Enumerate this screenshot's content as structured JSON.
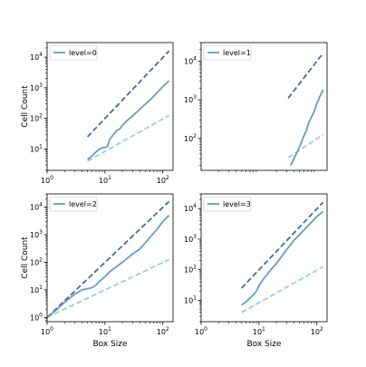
{
  "chart_data": [
    {
      "type": "line",
      "xscale": "log",
      "yscale": "log",
      "xlim": [
        1,
        150
      ],
      "ylim": [
        2,
        30000
      ],
      "xlabel": "",
      "ylabel": "Cell Count",
      "x_ticks": [
        {
          "value": 1,
          "base": "10",
          "exp": "0"
        },
        {
          "value": 10,
          "base": "10",
          "exp": "1"
        },
        {
          "value": 100,
          "base": "10",
          "exp": "2"
        }
      ],
      "y_ticks": [
        {
          "value": 10,
          "base": "10",
          "exp": "1"
        },
        {
          "value": 100,
          "base": "10",
          "exp": "2"
        },
        {
          "value": 1000,
          "base": "10",
          "exp": "3"
        },
        {
          "value": 10000,
          "base": "10",
          "exp": "4"
        }
      ],
      "legend": {
        "position": "upper-left",
        "entry": "level=0"
      },
      "series": [
        {
          "role": "data",
          "color": "#6a9bc6",
          "style": "solid",
          "x": [
            5,
            6,
            7,
            8,
            9,
            10,
            11,
            12,
            14,
            16,
            18,
            20,
            25,
            30,
            40,
            60,
            80,
            100,
            128
          ],
          "y": [
            4.5,
            6,
            8,
            10,
            11,
            11,
            12,
            20,
            30,
            40,
            45,
            60,
            90,
            120,
            200,
            400,
            700,
            1100,
            1700
          ]
        },
        {
          "role": "reference",
          "color": "#4d6a8e",
          "style": "dashed",
          "x": [
            5,
            128
          ],
          "y": [
            25,
            16000
          ]
        },
        {
          "role": "reference",
          "color": "#9fcbe3",
          "style": "dashed",
          "x": [
            5,
            128
          ],
          "y": [
            4,
            125
          ]
        }
      ]
    },
    {
      "type": "line",
      "xscale": "log",
      "yscale": "log",
      "xlim": [
        1,
        150
      ],
      "ylim": [
        15,
        30000
      ],
      "xlabel": "",
      "ylabel": "",
      "x_ticks": [],
      "y_ticks": [
        {
          "value": 100,
          "base": "10",
          "exp": "2"
        },
        {
          "value": 1000,
          "base": "10",
          "exp": "3"
        },
        {
          "value": 10000,
          "base": "10",
          "exp": "4"
        }
      ],
      "legend": {
        "position": "upper-left",
        "entry": "level=1"
      },
      "series": [
        {
          "role": "data",
          "color": "#6a9bc6",
          "style": "solid",
          "x": [
            35,
            38,
            42,
            46,
            50,
            55,
            60,
            66,
            72,
            80,
            90,
            100,
            115,
            128
          ],
          "y": [
            20,
            25,
            35,
            45,
            60,
            85,
            120,
            160,
            250,
            350,
            500,
            800,
            1300,
            1800
          ]
        },
        {
          "role": "reference",
          "color": "#4d6a8e",
          "style": "dashed",
          "x": [
            32,
            128
          ],
          "y": [
            1100,
            16000
          ]
        },
        {
          "role": "reference",
          "color": "#9fcbe3",
          "style": "dashed",
          "x": [
            32,
            128
          ],
          "y": [
            32,
            125
          ]
        }
      ]
    },
    {
      "type": "line",
      "xscale": "log",
      "yscale": "log",
      "xlim": [
        1,
        150
      ],
      "ylim": [
        0.7,
        30000
      ],
      "xlabel": "Box Size",
      "ylabel": "Cell Count",
      "x_ticks": [
        {
          "value": 1,
          "base": "10",
          "exp": "0"
        },
        {
          "value": 10,
          "base": "10",
          "exp": "1"
        },
        {
          "value": 100,
          "base": "10",
          "exp": "2"
        }
      ],
      "y_ticks": [
        {
          "value": 1,
          "base": "10",
          "exp": "0"
        },
        {
          "value": 10,
          "base": "10",
          "exp": "1"
        },
        {
          "value": 100,
          "base": "10",
          "exp": "2"
        },
        {
          "value": 1000,
          "base": "10",
          "exp": "3"
        },
        {
          "value": 10000,
          "base": "10",
          "exp": "4"
        }
      ],
      "legend": {
        "position": "upper-left",
        "entry": "level=2"
      },
      "series": [
        {
          "role": "data",
          "color": "#6a9bc6",
          "style": "solid",
          "x": [
            1,
            1.5,
            2,
            3,
            4,
            5,
            6,
            7,
            8,
            10,
            12,
            16,
            20,
            30,
            40,
            60,
            80,
            100,
            128
          ],
          "y": [
            1,
            2,
            3.5,
            7,
            10,
            11,
            12,
            15,
            20,
            30,
            45,
            70,
            100,
            200,
            300,
            800,
            1600,
            3000,
            5000
          ]
        },
        {
          "role": "reference",
          "color": "#4d6a8e",
          "style": "dashed",
          "x": [
            1,
            128
          ],
          "y": [
            1,
            16000
          ]
        },
        {
          "role": "reference",
          "color": "#9fcbe3",
          "style": "dashed",
          "x": [
            1,
            128
          ],
          "y": [
            1,
            125
          ]
        }
      ]
    },
    {
      "type": "line",
      "xscale": "log",
      "yscale": "log",
      "xlim": [
        1,
        150
      ],
      "ylim": [
        2,
        30000
      ],
      "xlabel": "Box Size",
      "ylabel": "",
      "x_ticks": [
        {
          "value": 1,
          "base": "10",
          "exp": "0"
        },
        {
          "value": 10,
          "base": "10",
          "exp": "1"
        },
        {
          "value": 100,
          "base": "10",
          "exp": "2"
        }
      ],
      "y_ticks": [
        {
          "value": 10,
          "base": "10",
          "exp": "1"
        },
        {
          "value": 100,
          "base": "10",
          "exp": "2"
        },
        {
          "value": 1000,
          "base": "10",
          "exp": "3"
        },
        {
          "value": 10000,
          "base": "10",
          "exp": "4"
        }
      ],
      "legend": {
        "position": "upper-left",
        "entry": "level=3"
      },
      "series": [
        {
          "role": "data",
          "color": "#6a9bc6",
          "style": "solid",
          "x": [
            5,
            6,
            7,
            8,
            9,
            10,
            12,
            16,
            20,
            30,
            40,
            60,
            80,
            100,
            128
          ],
          "y": [
            7,
            9,
            12,
            15,
            20,
            30,
            50,
            100,
            160,
            450,
            900,
            2000,
            3500,
            5500,
            8000
          ]
        },
        {
          "role": "reference",
          "color": "#4d6a8e",
          "style": "dashed",
          "x": [
            5,
            128
          ],
          "y": [
            25,
            16000
          ]
        },
        {
          "role": "reference",
          "color": "#9fcbe3",
          "style": "dashed",
          "x": [
            5,
            128
          ],
          "y": [
            4,
            125
          ]
        }
      ]
    }
  ]
}
